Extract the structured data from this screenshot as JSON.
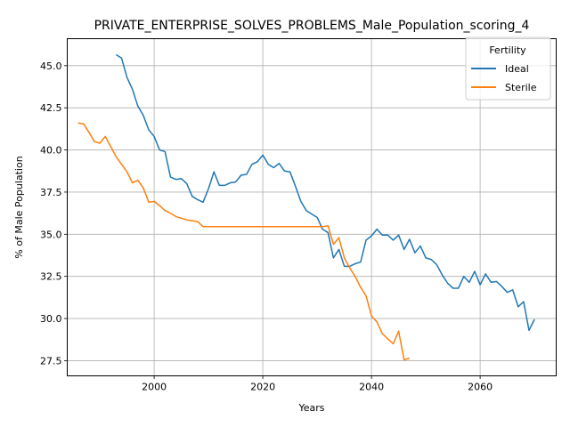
{
  "chart_data": {
    "type": "line",
    "title": "PRIVATE_ENTERPRISE_SOLVES_PROBLEMS_Male_Population_scoring_4",
    "xlabel": "Years",
    "ylabel": "% of Male Population",
    "xlim": [
      1984,
      2074
    ],
    "ylim": [
      26.6,
      46.6
    ],
    "xticks": [
      2000,
      2020,
      2040,
      2060
    ],
    "yticks": [
      27.5,
      30.0,
      32.5,
      35.0,
      37.5,
      40.0,
      42.5,
      45.0
    ],
    "grid": true,
    "legend": {
      "title": "Fertility",
      "placement": "top-right"
    },
    "series": [
      {
        "name": "Ideal",
        "color": "#1f77b4",
        "x": [
          1993,
          1994,
          1995,
          1996,
          1997,
          1998,
          1999,
          2000,
          2001,
          2002,
          2003,
          2004,
          2005,
          2006,
          2007,
          2008,
          2009,
          2010,
          2011,
          2012,
          2013,
          2014,
          2015,
          2016,
          2017,
          2018,
          2019,
          2020,
          2021,
          2022,
          2023,
          2024,
          2025,
          2026,
          2027,
          2028,
          2029,
          2030,
          2031,
          2032,
          2033,
          2034,
          2035,
          2036,
          2037,
          2038,
          2039,
          2040,
          2041,
          2042,
          2043,
          2044,
          2045,
          2046,
          2047,
          2048,
          2049,
          2050,
          2051,
          2052,
          2053,
          2054,
          2055,
          2056,
          2057,
          2058,
          2059,
          2060,
          2061,
          2062,
          2063,
          2064,
          2065,
          2066,
          2067,
          2068,
          2069,
          2070
        ],
        "y": [
          45.65,
          45.45,
          44.3,
          43.6,
          42.6,
          42.05,
          41.2,
          40.8,
          40.0,
          39.9,
          38.4,
          38.25,
          38.3,
          38.0,
          37.25,
          37.05,
          36.9,
          37.7,
          38.7,
          37.9,
          37.9,
          38.05,
          38.1,
          38.5,
          38.55,
          39.15,
          39.3,
          39.7,
          39.15,
          38.95,
          39.2,
          38.75,
          38.7,
          37.85,
          36.95,
          36.4,
          36.2,
          36.0,
          35.3,
          35.1,
          33.6,
          34.1,
          33.1,
          33.1,
          33.25,
          33.35,
          34.65,
          34.9,
          35.3,
          34.95,
          34.95,
          34.65,
          34.95,
          34.1,
          34.7,
          33.9,
          34.3,
          33.6,
          33.5,
          33.2,
          32.6,
          32.1,
          31.8,
          31.8,
          32.5,
          32.15,
          32.8,
          32.0,
          32.65,
          32.15,
          32.2,
          31.9,
          31.55,
          31.7,
          30.7,
          31.0,
          29.3,
          29.95
        ]
      },
      {
        "name": "Sterile",
        "color": "#ff7f0e",
        "x": [
          1986,
          1987,
          1988,
          1989,
          1990,
          1991,
          1992,
          1993,
          1994,
          1995,
          1996,
          1997,
          1998,
          1999,
          2000,
          2001,
          2002,
          2003,
          2004,
          2005,
          2006,
          2007,
          2008,
          2009,
          2010,
          2011,
          2012,
          2013,
          2014,
          2015,
          2016,
          2017,
          2018,
          2019,
          2020,
          2021,
          2022,
          2023,
          2024,
          2025,
          2026,
          2027,
          2028,
          2029,
          2030,
          2031,
          2032,
          2033,
          2034,
          2035,
          2036,
          2037,
          2038,
          2039,
          2040,
          2041,
          2042,
          2043,
          2044,
          2045,
          2046,
          2047
        ],
        "y": [
          41.6,
          41.55,
          41.05,
          40.5,
          40.4,
          40.8,
          40.2,
          39.6,
          39.15,
          38.7,
          38.05,
          38.2,
          37.75,
          36.9,
          36.95,
          36.7,
          36.4,
          36.25,
          36.05,
          35.95,
          35.85,
          35.8,
          35.75,
          35.45,
          35.45,
          35.45,
          35.45,
          35.45,
          35.45,
          35.45,
          35.45,
          35.45,
          35.45,
          35.45,
          35.45,
          35.45,
          35.45,
          35.45,
          35.45,
          35.45,
          35.45,
          35.45,
          35.45,
          35.45,
          35.45,
          35.45,
          35.5,
          34.4,
          34.8,
          33.6,
          33.0,
          32.5,
          31.85,
          31.35,
          30.15,
          29.8,
          29.1,
          28.8,
          28.5,
          29.25,
          27.55,
          27.65
        ]
      }
    ]
  }
}
